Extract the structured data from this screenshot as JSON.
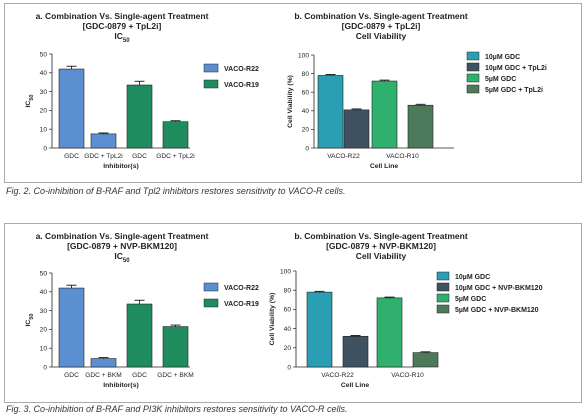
{
  "colors": {
    "vaco_r22": "#5b8fd1",
    "vaco_r19": "#1f8c5f",
    "gdc10": "#2a9fb4",
    "gdc10_combo": "#3f5261",
    "gdc5": "#2fb06c",
    "gdc5_combo": "#4e7a5c",
    "bar_outline": "#222222",
    "frame": "#a9a9a9"
  },
  "figures": [
    {
      "caption": "Fig. 2. Co-inhibition of B-RAF and Tpl2 inhibitors restores sensitivity to VACO-R cells."
    },
    {
      "caption": "Fig. 3. Co-inhibition of B-RAF and PI3K inhibitors restores sensitivity to VACO-R cells."
    }
  ],
  "chart_data": [
    {
      "type": "bar",
      "title": "a. Combination Vs. Single-agent Treatment",
      "subtitle": "[GDC-0879 + TpL2i]",
      "subtitle2": "IC50",
      "xlabel": "Inhibitor(s)",
      "ylabel": "IC50",
      "ylim": [
        0,
        50
      ],
      "yticks": [
        0,
        10,
        20,
        30,
        40,
        50
      ],
      "categories": [
        "GDC",
        "GDC + TpL2i",
        "GDC",
        "GDC + TpL2i"
      ],
      "bar_series": [
        "VACO-R22",
        "VACO-R22",
        "VACO-R19",
        "VACO-R19"
      ],
      "values": [
        42,
        7.5,
        33.5,
        14
      ],
      "errors": [
        1.5,
        0.5,
        2.0,
        0.5
      ],
      "legend": [
        "VACO-R22",
        "VACO-R19"
      ],
      "legend_position": "right",
      "grid": false
    },
    {
      "type": "bar",
      "title": "b. Combination Vs. Single-agent Treatment",
      "subtitle": "[GDC-0879 + TpL2i]",
      "subtitle2": "Cell Viability",
      "xlabel": "Cell Line",
      "ylabel": "Cell Viability (%)",
      "ylim": [
        0,
        100
      ],
      "yticks": [
        0,
        20,
        40,
        60,
        80,
        100
      ],
      "groups": [
        "VACO-R22",
        "VACO-R10"
      ],
      "series": [
        {
          "name": "10µM GDC",
          "values": [
            78,
            null
          ]
        },
        {
          "name": "10µM GDC + TpL2i",
          "values": [
            41,
            null
          ]
        },
        {
          "name": "5µM GDC",
          "values": [
            null,
            72
          ]
        },
        {
          "name": "5µM GDC + TpL2i",
          "values": [
            null,
            46
          ]
        }
      ],
      "errors": [
        1,
        1,
        1,
        1
      ],
      "legend_position": "right",
      "grid": false
    },
    {
      "type": "bar",
      "title": "a. Combination Vs. Single-agent Treatment",
      "subtitle": "[GDC-0879 + NVP-BKM120]",
      "subtitle2": "IC50",
      "xlabel": "Inhibitor(s)",
      "ylabel": "IC50",
      "ylim": [
        0,
        50
      ],
      "yticks": [
        0,
        10,
        20,
        30,
        40,
        50
      ],
      "categories": [
        "GDC",
        "GDC + BKM",
        "GDC",
        "GDC + BKM"
      ],
      "bar_series": [
        "VACO-R22",
        "VACO-R22",
        "VACO-R19",
        "VACO-R19"
      ],
      "values": [
        42,
        4.5,
        33.5,
        21.5
      ],
      "errors": [
        1.5,
        0.5,
        2.0,
        0.8
      ],
      "legend": [
        "VACO-R22",
        "VACO-R19"
      ],
      "legend_position": "right",
      "grid": false
    },
    {
      "type": "bar",
      "title": "b. Combination Vs. Single-agent Treatment",
      "subtitle": "[GDC-0879 + NVP-BKM120]",
      "subtitle2": "Cell Viability",
      "xlabel": "Cell Line",
      "ylabel": "Cell Viability (%)",
      "ylim": [
        0,
        100
      ],
      "yticks": [
        0,
        20,
        40,
        60,
        80,
        100
      ],
      "groups": [
        "VACO-R22",
        "VACO-R10"
      ],
      "series": [
        {
          "name": "10µM GDC",
          "values": [
            78,
            null
          ]
        },
        {
          "name": "10µM GDC + NVP-BKM120",
          "values": [
            32,
            null
          ]
        },
        {
          "name": "5µM GDC",
          "values": [
            null,
            72
          ]
        },
        {
          "name": "5µM GDC + NVP-BKM120",
          "values": [
            null,
            15
          ]
        }
      ],
      "errors": [
        0.8,
        0.8,
        0.8,
        0.8
      ],
      "legend_position": "right",
      "grid": false
    }
  ]
}
